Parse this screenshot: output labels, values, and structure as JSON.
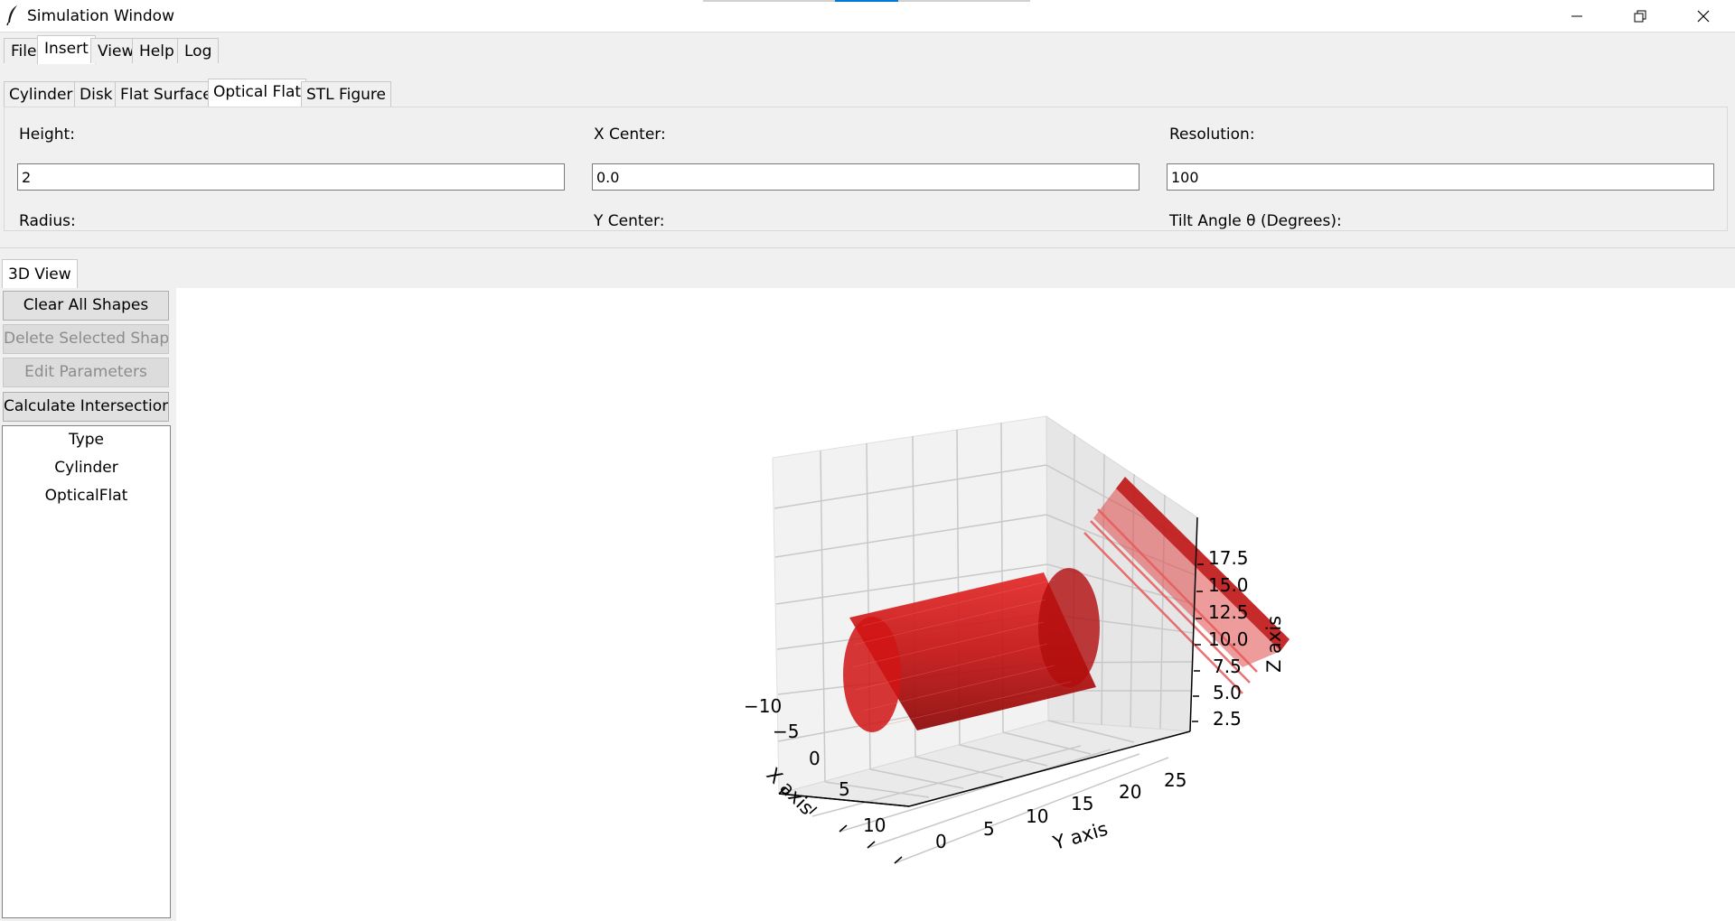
{
  "window": {
    "title": "Simulation Window",
    "controls": {
      "minimize": "minimize-icon",
      "restore": "restore-icon",
      "close": "close-icon"
    }
  },
  "menu": {
    "tabs": [
      {
        "label": "File"
      },
      {
        "label": "Insert",
        "active": true
      },
      {
        "label": "View"
      },
      {
        "label": "Help"
      },
      {
        "label": "Log"
      }
    ]
  },
  "insert": {
    "tabs": [
      {
        "label": "Cylinder"
      },
      {
        "label": "Disk"
      },
      {
        "label": "Flat Surface"
      },
      {
        "label": "Optical Flat",
        "active": true
      },
      {
        "label": "STL Figure"
      }
    ],
    "params": {
      "height_label": "Height:",
      "height_value": "2",
      "xcenter_label": "X Center:",
      "xcenter_value": "0.0",
      "resolution_label": "Resolution:",
      "resolution_value": "100",
      "radius_label": "Radius:",
      "ycenter_label": "Y Center:",
      "tilt_label": "Tilt Angle θ (Degrees):"
    }
  },
  "view_tab": {
    "label": "3D View"
  },
  "sidebar": {
    "buttons": {
      "clear_all": "Clear All Shapes",
      "delete_selected": "Delete Selected Shape",
      "edit_params": "Edit Parameters",
      "calc_intersection": "Calculate Intersection"
    },
    "tree": {
      "header": "Type",
      "rows": [
        "Cylinder",
        "OpticalFlat"
      ]
    }
  },
  "plot": {
    "x_axis_label": "X axis",
    "y_axis_label": "Y axis",
    "z_axis_label": "Z axis",
    "x_ticks": [
      "−10",
      "−5",
      "0",
      "5",
      "10"
    ],
    "y_ticks": [
      "0",
      "5",
      "10",
      "15",
      "20",
      "25"
    ],
    "z_ticks": [
      "2.5",
      "5.0",
      "7.5",
      "10.0",
      "12.5",
      "15.0",
      "17.5"
    ],
    "shape_color": "#d40000"
  }
}
